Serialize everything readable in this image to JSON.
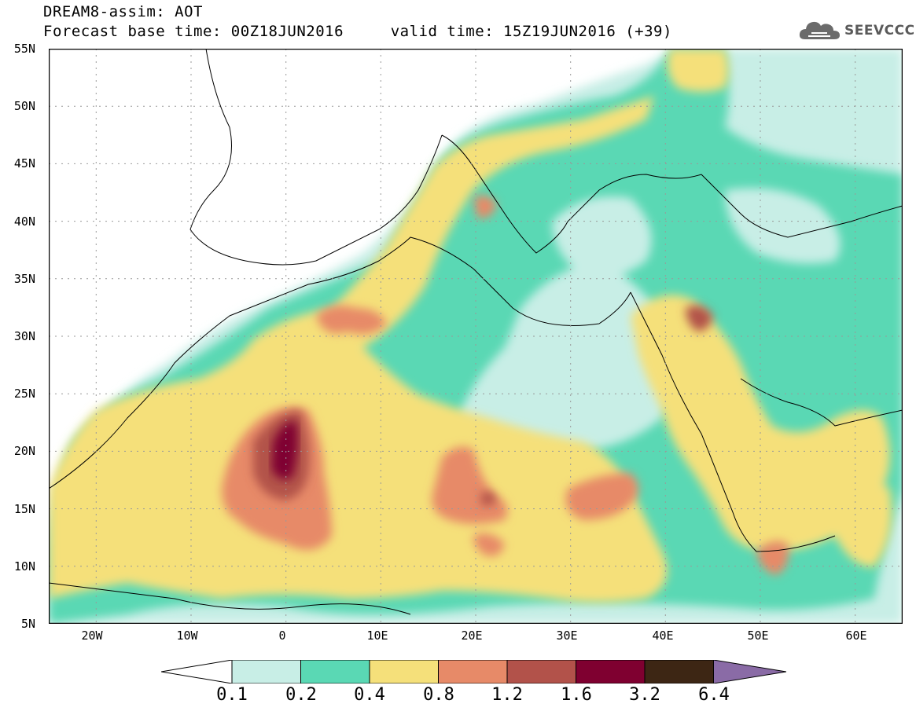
{
  "title": {
    "line1": "DREAM8-assim: AOT",
    "line2": "Forecast base time: 00Z18JUN2016     valid time: 15Z19JUN2016 (+39)"
  },
  "logo": {
    "text": "SEEVCCC",
    "icon": "cloud-icon"
  },
  "axes": {
    "lat_labels": [
      "55N",
      "50N",
      "45N",
      "40N",
      "35N",
      "30N",
      "25N",
      "20N",
      "15N",
      "10N",
      "5N"
    ],
    "lon_labels": [
      "20W",
      "10W",
      "0",
      "10E",
      "20E",
      "30E",
      "40E",
      "50E",
      "60E"
    ],
    "lat_range": [
      5,
      55
    ],
    "lon_range": [
      -25,
      65
    ]
  },
  "colorbar": {
    "labels": [
      "0.1",
      "0.2",
      "0.4",
      "0.8",
      "1.2",
      "1.6",
      "3.2",
      "6.4"
    ],
    "colors": [
      "#ffffff",
      "#c8eee6",
      "#5ad8b4",
      "#f5e07a",
      "#e78a68",
      "#b2524a",
      "#7f0030",
      "#3d2614",
      "#8a6ba6"
    ]
  },
  "palette": {
    "aot_0_1": "#c8eee6",
    "aot_0_2": "#5ad8b4",
    "aot_0_4": "#f5e07a",
    "aot_0_8": "#e78a68",
    "aot_1_2": "#b2524a",
    "aot_1_6": "#7f0030"
  }
}
